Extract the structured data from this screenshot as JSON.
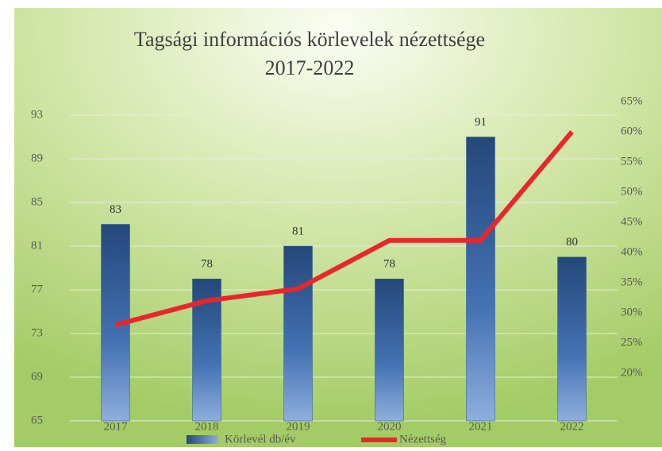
{
  "chart_data": {
    "type": "bar",
    "title": "Tagsági információs körlevelek nézettsége",
    "subtitle": "2017-2022",
    "categories": [
      "2017",
      "2018",
      "2019",
      "2020",
      "2021",
      "2022"
    ],
    "series": [
      {
        "name": "Körlevél db/év",
        "type": "bar",
        "color": "#2d5a96",
        "values": [
          83,
          78,
          81,
          78,
          91,
          80
        ]
      },
      {
        "name": "Nézettség",
        "type": "line",
        "axis": "y2",
        "color": "#e8262b",
        "values": [
          28,
          32,
          34,
          42,
          42,
          60
        ]
      }
    ],
    "ylim": [
      65,
      93
    ],
    "yticks": [
      65,
      69,
      73,
      77,
      81,
      85,
      89,
      93
    ],
    "y2lim": [
      20,
      65
    ],
    "y2ticks": [
      {
        "value": 20,
        "label": "20%"
      },
      {
        "value": 25,
        "label": "25%"
      },
      {
        "value": 30,
        "label": "30%"
      },
      {
        "value": 35,
        "label": "35%"
      },
      {
        "value": 40,
        "label": "40%"
      },
      {
        "value": 45,
        "label": "45%"
      },
      {
        "value": 50,
        "label": "50%"
      },
      {
        "value": 55,
        "label": "55%"
      },
      {
        "value": 60,
        "label": "60%"
      },
      {
        "value": 65,
        "label": "65%"
      }
    ],
    "grid": true,
    "legend": "bottom"
  }
}
